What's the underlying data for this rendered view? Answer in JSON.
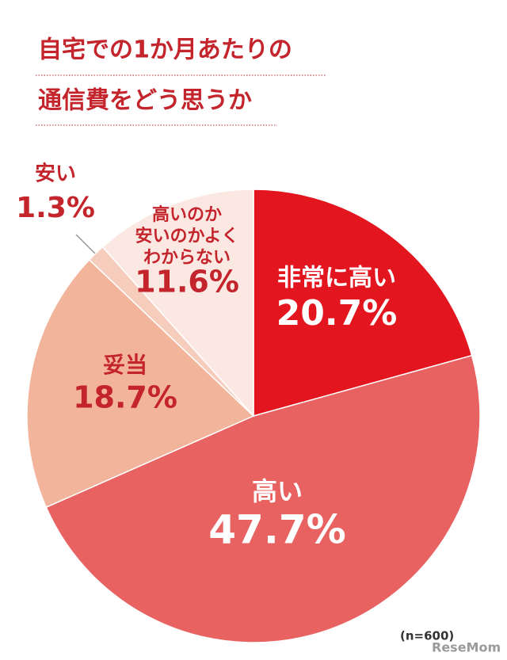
{
  "chart_data": {
    "type": "pie",
    "title": [
      "自宅での1か月あたりの",
      "通信費をどう思うか"
    ],
    "categories": [
      "非常に高い",
      "高い",
      "妥当",
      "安い",
      "高いのか\n安いのかよく\nわからない"
    ],
    "values": [
      20.7,
      47.7,
      18.7,
      1.3,
      11.6
    ],
    "value_labels": [
      "20.7%",
      "47.7%",
      "18.7%",
      "1.3%",
      "11.6%"
    ],
    "colors": [
      "#e3151e",
      "#e86262",
      "#f2b59c",
      "#f6cdbd",
      "#fbe8e2"
    ],
    "note": "(n=600)",
    "source": "ReseMom"
  }
}
